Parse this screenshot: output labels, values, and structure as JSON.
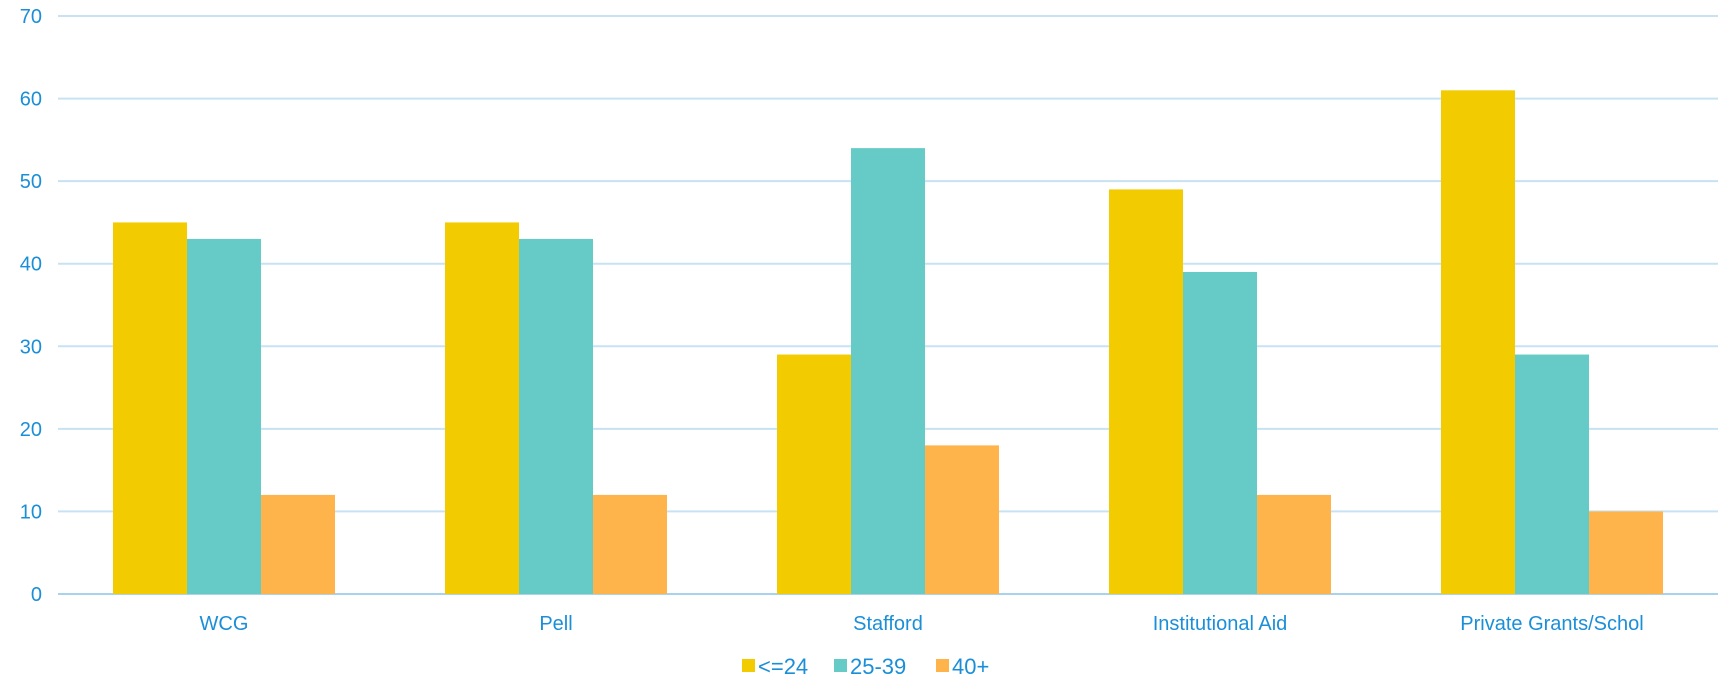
{
  "chart_data": {
    "type": "bar",
    "title": "",
    "xlabel": "",
    "ylabel": "",
    "ylim": [
      0,
      70
    ],
    "yticks": [
      0,
      10,
      20,
      30,
      40,
      50,
      60,
      70
    ],
    "grid": true,
    "legend_position": "bottom",
    "categories": [
      "WCG",
      "Pell",
      "Stafford",
      "Institutional Aid",
      "Private Grants/Schol"
    ],
    "series": [
      {
        "name": "<=24",
        "color": "#f2cc00",
        "values": [
          45,
          45,
          29,
          49,
          61
        ]
      },
      {
        "name": "25-39",
        "color": "#66cbc6",
        "values": [
          43,
          43,
          54,
          39,
          29
        ]
      },
      {
        "name": "40+",
        "color": "#ffb44b",
        "values": [
          12,
          12,
          18,
          12,
          10
        ]
      }
    ]
  }
}
